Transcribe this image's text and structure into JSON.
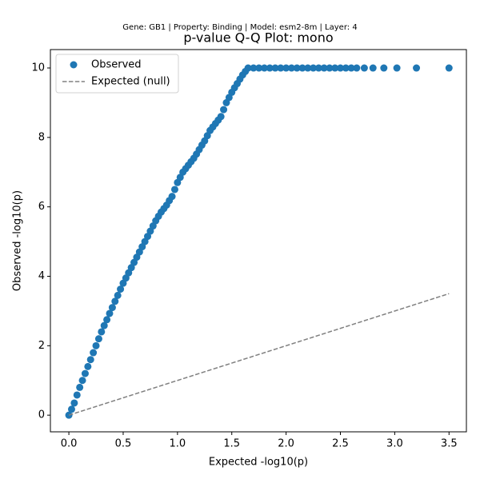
{
  "chart_data": {
    "type": "scatter",
    "suptitle": "Gene: GB1 | Property: Binding | Model: esm2-8m | Layer: 4",
    "title": "p-value Q-Q Plot: mono",
    "xlabel": "Expected -log10(p)",
    "ylabel": "Observed -log10(p)",
    "xlim": [
      -0.17,
      3.66
    ],
    "ylim": [
      -0.48,
      10.53
    ],
    "xticks": [
      {
        "value": 0,
        "label": "0.0"
      },
      {
        "value": 0.5,
        "label": "0.5"
      },
      {
        "value": 1,
        "label": "1.0"
      },
      {
        "value": 1.5,
        "label": "1.5"
      },
      {
        "value": 2,
        "label": "2.0"
      },
      {
        "value": 2.5,
        "label": "2.5"
      },
      {
        "value": 3,
        "label": "3.0"
      },
      {
        "value": 3.5,
        "label": "3.5"
      }
    ],
    "yticks": [
      0,
      2,
      4,
      6,
      8,
      10
    ],
    "legend": "upper left",
    "series": [
      {
        "name": "Observed",
        "color": "#1f77b4",
        "style": "markers",
        "x": [
          0,
          0.025,
          0.05,
          0.075,
          0.1,
          0.125,
          0.15,
          0.175,
          0.2,
          0.225,
          0.25,
          0.275,
          0.3,
          0.325,
          0.35,
          0.375,
          0.4,
          0.425,
          0.45,
          0.475,
          0.5,
          0.525,
          0.55,
          0.575,
          0.6,
          0.625,
          0.65,
          0.675,
          0.7,
          0.725,
          0.75,
          0.775,
          0.8,
          0.825,
          0.85,
          0.875,
          0.9,
          0.925,
          0.95,
          0.975,
          1.0,
          1.025,
          1.05,
          1.075,
          1.1,
          1.125,
          1.15,
          1.175,
          1.2,
          1.225,
          1.25,
          1.275,
          1.3,
          1.325,
          1.35,
          1.375,
          1.4,
          1.425,
          1.45,
          1.475,
          1.5,
          1.525,
          1.55,
          1.575,
          1.6,
          1.625,
          1.65,
          1.7,
          1.75,
          1.8,
          1.85,
          1.9,
          1.95,
          2.0,
          2.05,
          2.1,
          2.15,
          2.2,
          2.25,
          2.3,
          2.35,
          2.4,
          2.45,
          2.5,
          2.55,
          2.6,
          2.65,
          2.72,
          2.8,
          2.9,
          3.02,
          3.2,
          3.5
        ],
        "values": [
          0,
          0.17,
          0.35,
          0.58,
          0.8,
          1.0,
          1.2,
          1.4,
          1.6,
          1.8,
          2.0,
          2.2,
          2.4,
          2.58,
          2.75,
          2.93,
          3.1,
          3.28,
          3.45,
          3.63,
          3.8,
          3.95,
          4.1,
          4.25,
          4.4,
          4.55,
          4.7,
          4.85,
          5.0,
          5.15,
          5.3,
          5.45,
          5.6,
          5.73,
          5.85,
          5.95,
          6.05,
          6.18,
          6.3,
          6.5,
          6.7,
          6.85,
          7.0,
          7.1,
          7.2,
          7.3,
          7.4,
          7.52,
          7.65,
          7.78,
          7.9,
          8.05,
          8.2,
          8.3,
          8.4,
          8.5,
          8.6,
          8.8,
          9.0,
          9.15,
          9.3,
          9.43,
          9.55,
          9.68,
          9.8,
          9.9,
          10,
          10,
          10,
          10,
          10,
          10,
          10,
          10,
          10,
          10,
          10,
          10,
          10,
          10,
          10,
          10,
          10,
          10,
          10,
          10,
          10,
          10,
          10,
          10,
          10,
          10,
          10
        ]
      },
      {
        "name": "Expected (null)",
        "color": "#808080",
        "style": "dashed",
        "x": [
          0,
          3.5
        ],
        "values": [
          0,
          3.5
        ]
      }
    ]
  }
}
